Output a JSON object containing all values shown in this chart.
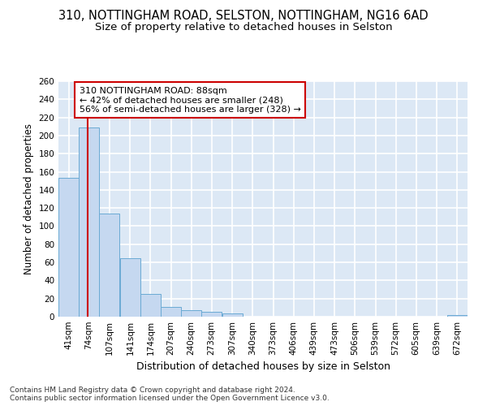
{
  "title_line1": "310, NOTTINGHAM ROAD, SELSTON, NOTTINGHAM, NG16 6AD",
  "title_line2": "Size of property relative to detached houses in Selston",
  "xlabel": "Distribution of detached houses by size in Selston",
  "ylabel": "Number of detached properties",
  "footnote": "Contains HM Land Registry data © Crown copyright and database right 2024.\nContains public sector information licensed under the Open Government Licence v3.0.",
  "bins": [
    41,
    74,
    107,
    141,
    174,
    207,
    240,
    273,
    307,
    340,
    373,
    406,
    439,
    473,
    506,
    539,
    572,
    605,
    639,
    672,
    705
  ],
  "bar_values": [
    153,
    209,
    114,
    65,
    25,
    11,
    7,
    5,
    4,
    0,
    0,
    0,
    0,
    0,
    0,
    0,
    0,
    0,
    0,
    2
  ],
  "bar_color": "#c5d8f0",
  "bar_edge_color": "#6aaad4",
  "property_size": 88,
  "annotation_line1": "310 NOTTINGHAM ROAD: 88sqm",
  "annotation_line2": "← 42% of detached houses are smaller (248)",
  "annotation_line3": "56% of semi-detached houses are larger (328) →",
  "vline_color": "#cc0000",
  "annotation_box_edge_color": "#cc0000",
  "ylim": [
    0,
    260
  ],
  "yticks": [
    0,
    20,
    40,
    60,
    80,
    100,
    120,
    140,
    160,
    180,
    200,
    220,
    240,
    260
  ],
  "background_color": "#dce8f5",
  "grid_color": "#ffffff",
  "title1_fontsize": 10.5,
  "title2_fontsize": 9.5,
  "xlabel_fontsize": 9,
  "ylabel_fontsize": 8.5,
  "tick_fontsize": 7.5,
  "annotation_fontsize": 8,
  "footnote_fontsize": 6.5
}
